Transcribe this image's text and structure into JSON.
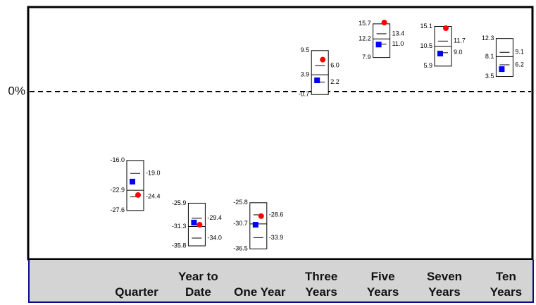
{
  "chart_data": {
    "type": "floating-bar",
    "categories": [
      "Quarter",
      "Year to Date",
      "One Year",
      "Three Years",
      "Five Years",
      "Seven Years",
      "Ten Years"
    ],
    "high": [
      -16.0,
      -25.9,
      -25.8,
      9.5,
      15.7,
      15.1,
      12.3
    ],
    "upper_quartile": [
      -19.0,
      -29.4,
      -28.6,
      6.0,
      13.4,
      11.7,
      9.1
    ],
    "median": [
      -22.9,
      -31.3,
      -30.7,
      3.9,
      12.2,
      10.5,
      8.1
    ],
    "lower_quartile": [
      -24.4,
      -34.0,
      -33.9,
      2.2,
      11.0,
      9.0,
      6.2
    ],
    "low": [
      -27.6,
      -35.8,
      -36.5,
      -0.7,
      7.9,
      5.9,
      3.5
    ],
    "value_labels": {
      "high": [
        "-16.0",
        "-25.9",
        "-25.8",
        "9.5",
        "15.7",
        "15.1",
        "12.3"
      ],
      "upper_quartile": [
        "-19.0",
        "-29.4",
        "-28.6",
        "6.0",
        "13.4",
        "11.7",
        "9.1"
      ],
      "median": [
        "-22.9",
        "-31.3",
        "-30.7",
        "3.9",
        "12.2",
        "10.5",
        "8.1"
      ],
      "lower_quartile": [
        "-24.4",
        "-34.0",
        "-33.9",
        "2.2",
        "11.0",
        "9.0",
        "6.2"
      ],
      "low": [
        "-27.6",
        "-35.8",
        "-36.5",
        "-0.7",
        "7.9",
        "5.9",
        "3.5"
      ]
    },
    "markers": [
      {
        "shape": "square",
        "color": "#0000ff",
        "values": [
          -20.9,
          -30.4,
          -30.9,
          2.6,
          10.9,
          8.8,
          5.2
        ]
      },
      {
        "shape": "circle",
        "color": "#ff0000",
        "values": [
          -24.0,
          -30.9,
          -28.9,
          7.4,
          16.0,
          14.7,
          null
        ]
      }
    ],
    "ylim": [
      -38.9,
      19.6
    ],
    "yticks": [
      {
        "value": 0,
        "label": "0%"
      }
    ]
  }
}
